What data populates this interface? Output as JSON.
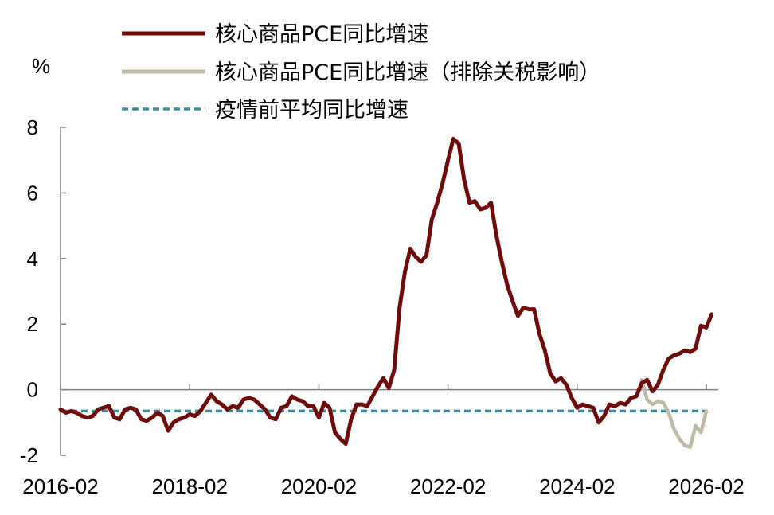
{
  "chart_data": {
    "type": "line",
    "ylabel": "%",
    "ylim": [
      -2,
      8
    ],
    "yticks": [
      "8",
      "6",
      "4",
      "2",
      "0",
      "-2"
    ],
    "xticks": [
      "2016-02",
      "2018-02",
      "2020-02",
      "2022-02",
      "2024-02",
      "2026-02"
    ],
    "grid": false,
    "legend_position": "top-left",
    "colors": {
      "core_goods": "#6e0b0b",
      "ex_tariff": "#bfbaa6",
      "pre_pandemic": "#3d8ea0",
      "axis": "#7f7f7f"
    },
    "legend": [
      {
        "key": "core_goods",
        "label": "核心商品PCE同比增速",
        "style": "solid"
      },
      {
        "key": "ex_tariff",
        "label": "核心商品PCE同比增速（排除关税影响）",
        "style": "solid"
      },
      {
        "key": "pre_pandemic",
        "label": "疫情前平均同比增速",
        "style": "dashed"
      }
    ],
    "series": [
      {
        "key": "core_goods",
        "start": "2016-02",
        "values": [
          -0.6,
          -0.7,
          -0.65,
          -0.7,
          -0.8,
          -0.85,
          -0.8,
          -0.6,
          -0.55,
          -0.5,
          -0.85,
          -0.9,
          -0.6,
          -0.55,
          -0.6,
          -0.9,
          -0.95,
          -0.85,
          -0.7,
          -0.8,
          -1.25,
          -1.0,
          -0.9,
          -0.85,
          -0.75,
          -0.8,
          -0.65,
          -0.4,
          -0.15,
          -0.35,
          -0.45,
          -0.6,
          -0.5,
          -0.55,
          -0.3,
          -0.25,
          -0.3,
          -0.45,
          -0.6,
          -0.85,
          -0.9,
          -0.55,
          -0.5,
          -0.2,
          -0.3,
          -0.35,
          -0.5,
          -0.5,
          -0.85,
          -0.4,
          -0.55,
          -1.3,
          -1.5,
          -1.65,
          -0.9,
          -0.45,
          -0.45,
          -0.5,
          -0.2,
          0.1,
          0.35,
          0.05,
          0.6,
          2.5,
          3.6,
          4.3,
          4.05,
          3.9,
          4.1,
          5.2,
          5.7,
          6.3,
          7.0,
          7.65,
          7.5,
          6.4,
          5.7,
          5.75,
          5.5,
          5.55,
          5.7,
          4.7,
          3.9,
          3.2,
          2.7,
          2.25,
          2.5,
          2.45,
          2.45,
          1.7,
          1.2,
          0.5,
          0.25,
          0.35,
          0.15,
          -0.25,
          -0.55,
          -0.45,
          -0.5,
          -0.55,
          -1.0,
          -0.8,
          -0.45,
          -0.5,
          -0.4,
          -0.45,
          -0.25,
          -0.2,
          0.2,
          0.3,
          -0.05,
          0.15,
          0.6,
          0.95,
          1.05,
          1.1,
          1.2,
          1.15,
          1.25,
          1.95,
          1.9,
          2.3
        ]
      },
      {
        "key": "ex_tariff",
        "start": "2025-02",
        "values": [
          0.3,
          -0.3,
          -0.45,
          -0.35,
          -0.4,
          -0.7,
          -1.2,
          -1.5,
          -1.7,
          -1.75,
          -1.1,
          -1.3,
          -0.65
        ]
      },
      {
        "key": "pre_pandemic",
        "start": "2016-02",
        "end": "2026-02",
        "value": -0.65
      }
    ]
  }
}
